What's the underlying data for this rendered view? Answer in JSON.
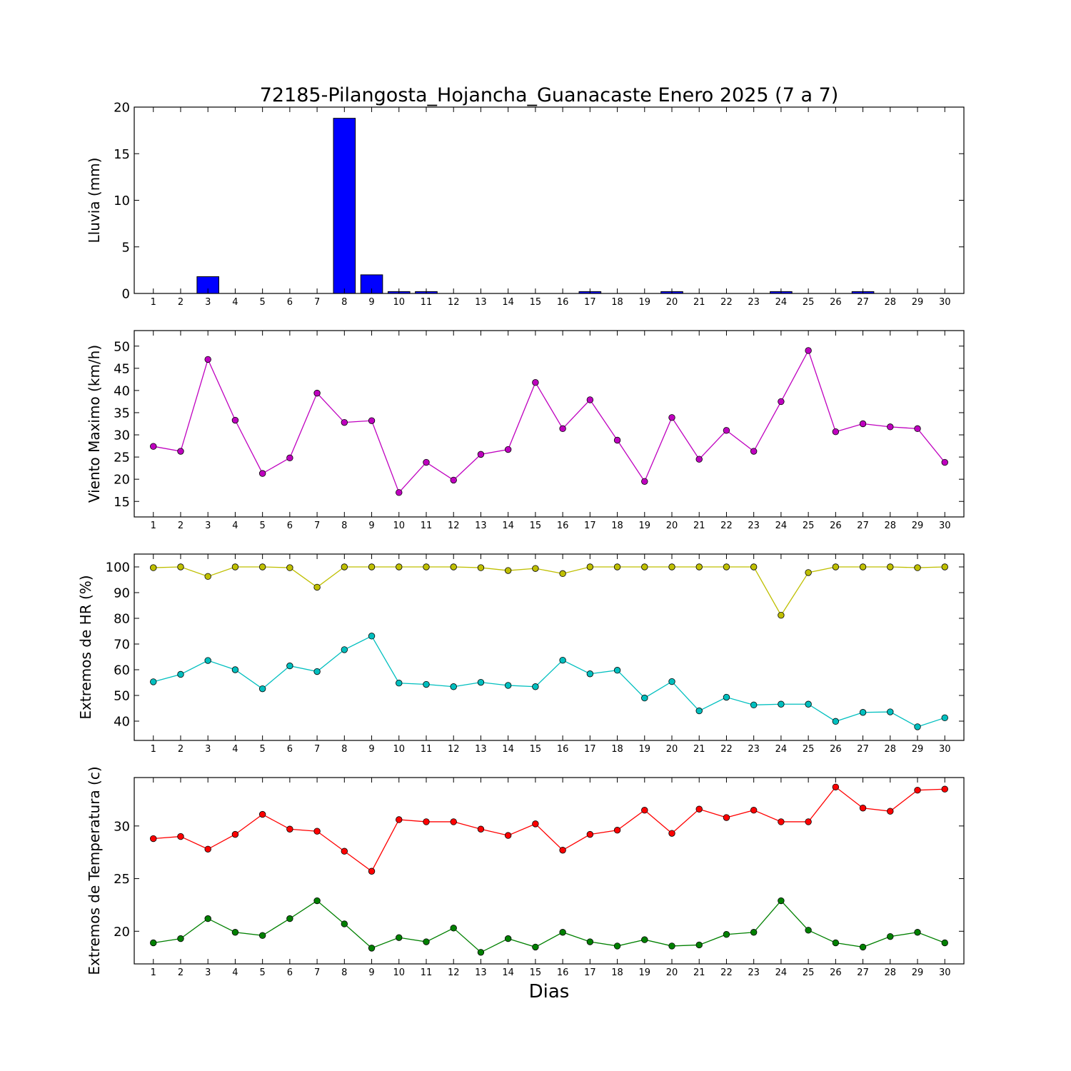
{
  "title": "72185-Pilangosta_Hojancha_Guanacaste Enero 2025  (7 a 7)",
  "xlabel": "Dias",
  "days": [
    1,
    2,
    3,
    4,
    5,
    6,
    7,
    8,
    9,
    10,
    11,
    12,
    13,
    14,
    15,
    16,
    17,
    18,
    19,
    20,
    21,
    22,
    23,
    24,
    25,
    26,
    27,
    28,
    29,
    30
  ],
  "chart_data": [
    {
      "type": "bar",
      "ylabel": "Lluvia (mm)",
      "ylim": [
        0,
        20
      ],
      "yticks": [
        0,
        5,
        10,
        15,
        20
      ],
      "grid": false,
      "series": [
        {
          "color": "#0000ff",
          "values": [
            0,
            0,
            1.8,
            0,
            0,
            0,
            0,
            18.8,
            2.0,
            0.2,
            0.2,
            0,
            0,
            0,
            0,
            0,
            0.2,
            0,
            0,
            0.2,
            0,
            0,
            0,
            0.2,
            0,
            0,
            0.2,
            0,
            0,
            0
          ]
        }
      ]
    },
    {
      "type": "line",
      "ylabel": "Viento Maximo (km/h)",
      "ylim": [
        11.5,
        53.5
      ],
      "yticks": [
        15,
        20,
        25,
        30,
        35,
        40,
        45,
        50
      ],
      "grid": false,
      "series": [
        {
          "color": "#bf00bf",
          "values": [
            27.4,
            26.3,
            47.0,
            33.3,
            21.3,
            24.8,
            39.4,
            32.8,
            33.2,
            17.0,
            23.8,
            19.8,
            25.6,
            26.7,
            41.8,
            31.4,
            37.9,
            28.8,
            19.5,
            33.9,
            24.5,
            31.0,
            26.3,
            37.5,
            49.0,
            30.7,
            32.5,
            31.8,
            31.4,
            23.8
          ]
        }
      ]
    },
    {
      "type": "line",
      "ylabel": "Extremos de HR (%)",
      "ylim": [
        32.5,
        105
      ],
      "yticks": [
        40,
        50,
        60,
        70,
        80,
        90,
        100
      ],
      "grid": false,
      "series": [
        {
          "color": "#bfbf00",
          "values": [
            99.7,
            100,
            96.3,
            100,
            100,
            99.7,
            92.1,
            100,
            100,
            100,
            100,
            100,
            99.7,
            98.6,
            99.4,
            97.4,
            100,
            100,
            100,
            100,
            100,
            100,
            100,
            81.2,
            97.8,
            100,
            100,
            100,
            99.7,
            100
          ]
        },
        {
          "color": "#00bfbf",
          "values": [
            55.3,
            58.2,
            63.6,
            60.0,
            52.6,
            61.5,
            59.3,
            67.8,
            73.1,
            54.8,
            54.3,
            53.4,
            55.1,
            53.9,
            53.4,
            63.7,
            58.4,
            59.8,
            49.0,
            55.4,
            44.0,
            49.3,
            46.3,
            46.6,
            46.6,
            39.9,
            43.4,
            43.6,
            37.8,
            41.3
          ]
        }
      ]
    },
    {
      "type": "line",
      "ylabel": "Extremos de Temperatura (c)",
      "ylim": [
        16.9,
        34.6
      ],
      "yticks": [
        20,
        25,
        30
      ],
      "grid": false,
      "series": [
        {
          "color": "#ff0000",
          "values": [
            28.8,
            29.0,
            27.8,
            29.2,
            31.1,
            29.7,
            29.5,
            27.6,
            25.7,
            30.6,
            30.4,
            30.4,
            29.7,
            29.1,
            30.2,
            27.7,
            29.2,
            29.6,
            31.5,
            29.3,
            31.6,
            30.8,
            31.5,
            30.4,
            30.4,
            33.7,
            31.7,
            31.4,
            33.4,
            33.5
          ]
        },
        {
          "color": "#008000",
          "values": [
            18.9,
            19.3,
            21.2,
            19.9,
            19.6,
            21.2,
            22.9,
            20.7,
            18.4,
            19.4,
            19.0,
            20.3,
            18.0,
            19.3,
            18.5,
            19.9,
            19.0,
            18.6,
            19.2,
            18.6,
            18.7,
            19.7,
            19.9,
            22.9,
            20.1,
            18.9,
            18.5,
            19.5,
            19.9,
            18.9
          ]
        }
      ]
    }
  ]
}
